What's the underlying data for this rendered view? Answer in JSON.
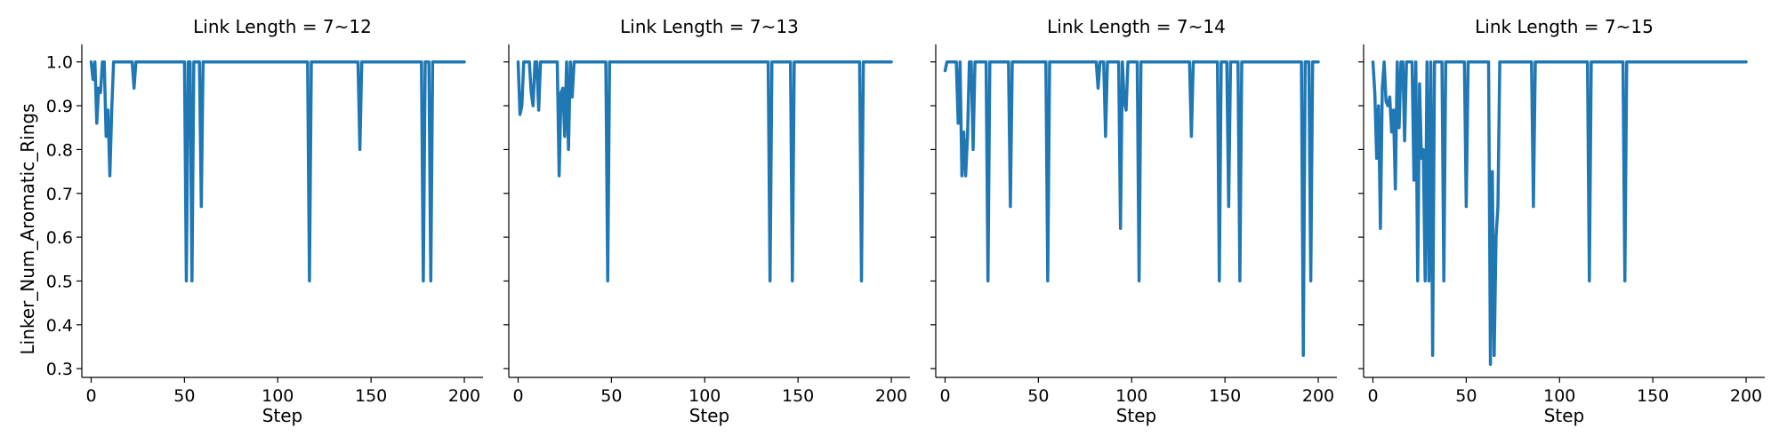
{
  "chart_data": {
    "type": "line",
    "ylabel": "Linker_Num_Aromatic_Rings",
    "xlabel": "Step",
    "xlim": [
      -5,
      210
    ],
    "ylim": [
      0.28,
      1.04
    ],
    "xticks": [
      0,
      50,
      100,
      150,
      200
    ],
    "yticks": [
      0.3,
      0.4,
      0.5,
      0.6,
      0.7,
      0.8,
      0.9,
      1.0
    ],
    "ytick_labels": [
      "0.3",
      "0.4",
      "0.5",
      "0.6",
      "0.7",
      "0.8",
      "0.9",
      "1.0"
    ],
    "line_color": "#1f77b4",
    "panels": [
      {
        "title": "Link Length = 7~12",
        "x": [
          0,
          1,
          2,
          3,
          4,
          5,
          6,
          7,
          8,
          9,
          10,
          11,
          12,
          13,
          14,
          15,
          16,
          22,
          23,
          24,
          50,
          51,
          52,
          53,
          54,
          55,
          56,
          57,
          58,
          59,
          60,
          116,
          117,
          118,
          143,
          144,
          145,
          177,
          178,
          179,
          181,
          182,
          183,
          200
        ],
        "y": [
          1.0,
          0.96,
          1.0,
          0.86,
          0.94,
          0.93,
          1.0,
          1.0,
          0.83,
          0.89,
          0.74,
          0.89,
          1.0,
          1.0,
          1.0,
          1.0,
          1.0,
          1.0,
          0.94,
          1.0,
          1.0,
          0.5,
          1.0,
          1.0,
          0.5,
          1.0,
          1.0,
          1.0,
          1.0,
          0.67,
          1.0,
          1.0,
          0.5,
          1.0,
          1.0,
          0.8,
          1.0,
          1.0,
          0.5,
          1.0,
          1.0,
          0.5,
          1.0,
          1.0
        ]
      },
      {
        "title": "Link Length = 7~13",
        "x": [
          0,
          1,
          2,
          3,
          4,
          5,
          6,
          7,
          8,
          9,
          10,
          11,
          12,
          13,
          14,
          15,
          16,
          17,
          18,
          19,
          20,
          21,
          22,
          23,
          24,
          25,
          26,
          27,
          28,
          29,
          30,
          31,
          32,
          33,
          47,
          48,
          49,
          134,
          135,
          136,
          146,
          147,
          148,
          183,
          184,
          185,
          200
        ],
        "y": [
          1.0,
          0.88,
          0.9,
          1.0,
          1.0,
          1.0,
          1.0,
          0.93,
          0.9,
          1.0,
          1.0,
          0.89,
          1.0,
          1.0,
          1.0,
          1.0,
          1.0,
          1.0,
          1.0,
          1.0,
          1.0,
          1.0,
          0.74,
          0.93,
          0.94,
          0.83,
          1.0,
          0.8,
          1.0,
          0.92,
          1.0,
          1.0,
          1.0,
          1.0,
          1.0,
          0.5,
          1.0,
          1.0,
          0.5,
          1.0,
          1.0,
          0.5,
          1.0,
          1.0,
          0.5,
          1.0,
          1.0
        ]
      },
      {
        "title": "Link Length = 7~14",
        "x": [
          0,
          1,
          2,
          3,
          4,
          5,
          6,
          7,
          8,
          9,
          10,
          11,
          12,
          13,
          14,
          15,
          16,
          17,
          18,
          22,
          23,
          24,
          34,
          35,
          36,
          54,
          55,
          56,
          81,
          82,
          83,
          85,
          86,
          87,
          93,
          94,
          95,
          96,
          97,
          98,
          99,
          103,
          104,
          105,
          131,
          132,
          133,
          146,
          147,
          148,
          151,
          152,
          153,
          157,
          158,
          159,
          191,
          192,
          193,
          195,
          196,
          197,
          200
        ],
        "y": [
          0.98,
          1.0,
          1.0,
          1.0,
          1.0,
          1.0,
          1.0,
          0.86,
          1.0,
          0.74,
          0.84,
          0.74,
          0.83,
          1.0,
          1.0,
          0.8,
          1.0,
          1.0,
          1.0,
          1.0,
          0.5,
          1.0,
          1.0,
          0.67,
          1.0,
          1.0,
          0.5,
          1.0,
          1.0,
          0.94,
          1.0,
          1.0,
          0.83,
          1.0,
          1.0,
          0.62,
          1.0,
          0.91,
          0.89,
          1.0,
          1.0,
          1.0,
          0.5,
          1.0,
          1.0,
          0.83,
          1.0,
          1.0,
          0.5,
          1.0,
          1.0,
          0.67,
          1.0,
          1.0,
          0.5,
          1.0,
          1.0,
          0.33,
          1.0,
          1.0,
          0.5,
          1.0,
          1.0
        ]
      },
      {
        "title": "Link Length = 7~15",
        "x": [
          0,
          1,
          2,
          3,
          4,
          5,
          6,
          7,
          8,
          9,
          10,
          11,
          12,
          13,
          14,
          15,
          16,
          17,
          18,
          19,
          20,
          21,
          22,
          23,
          24,
          25,
          26,
          27,
          28,
          29,
          30,
          31,
          32,
          33,
          34,
          35,
          36,
          37,
          38,
          39,
          40,
          41,
          48,
          49,
          50,
          51,
          52,
          53,
          54,
          55,
          56,
          57,
          62,
          63,
          64,
          65,
          66,
          67,
          68,
          69,
          70,
          85,
          86,
          87,
          115,
          116,
          117,
          134,
          135,
          136,
          200
        ],
        "y": [
          1.0,
          0.93,
          0.78,
          0.9,
          0.62,
          0.94,
          1.0,
          0.91,
          0.9,
          0.92,
          0.84,
          0.89,
          0.71,
          1.0,
          0.85,
          1.0,
          1.0,
          0.82,
          1.0,
          1.0,
          1.0,
          1.0,
          0.73,
          1.0,
          0.5,
          0.95,
          0.78,
          0.8,
          0.5,
          1.0,
          0.5,
          1.0,
          0.33,
          1.0,
          1.0,
          1.0,
          1.0,
          1.0,
          0.5,
          1.0,
          1.0,
          1.0,
          1.0,
          1.0,
          0.67,
          1.0,
          1.0,
          1.0,
          1.0,
          1.0,
          1.0,
          1.0,
          1.0,
          0.31,
          0.75,
          0.33,
          0.6,
          0.67,
          1.0,
          1.0,
          1.0,
          1.0,
          0.67,
          1.0,
          1.0,
          0.5,
          1.0,
          1.0,
          0.5,
          1.0,
          1.0
        ]
      }
    ]
  }
}
